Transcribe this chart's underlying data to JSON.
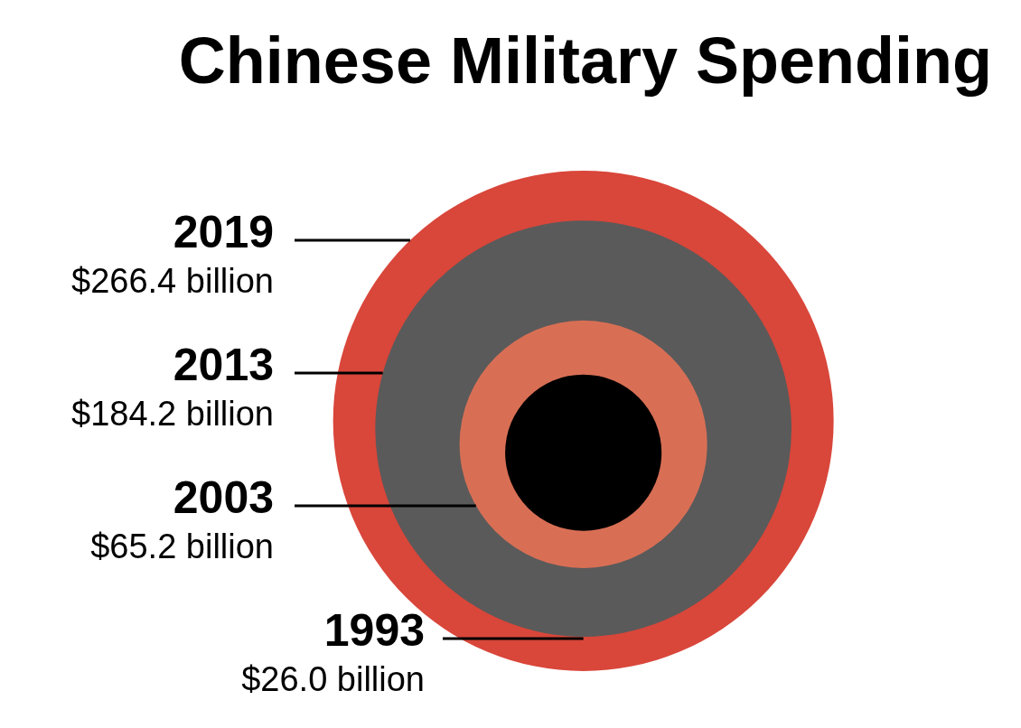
{
  "chart_data": {
    "type": "other",
    "title": "Chinese Military Spending",
    "categories": [
      "2019",
      "2013",
      "2003",
      "1993"
    ],
    "values": [
      266.4,
      184.2,
      65.2,
      26.0
    ],
    "colors": [
      "#d9463a",
      "#5a5a5a",
      "#d86f55",
      "#000000"
    ],
    "value_labels": [
      "$266.4 billion",
      "$184.2 billion",
      "$65.2 billion",
      "$26.0 billion"
    ]
  }
}
